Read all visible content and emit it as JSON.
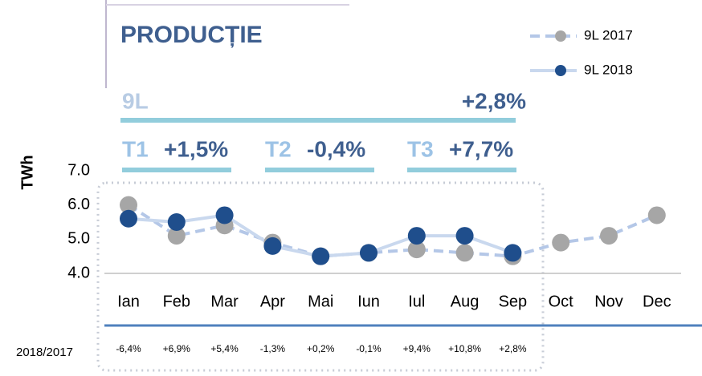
{
  "chart_data": {
    "type": "line",
    "title": "PRODUCȚIE",
    "ylabel": "TWh",
    "categories": [
      "Ian",
      "Feb",
      "Mar",
      "Apr",
      "Mai",
      "Iun",
      "Iul",
      "Aug",
      "Sep",
      "Oct",
      "Nov",
      "Dec"
    ],
    "series": [
      {
        "name": "9L 2017",
        "color": "#a6a6a6",
        "line_color": "#b4c7e7",
        "dashed": true,
        "values": [
          6.0,
          5.1,
          5.4,
          4.9,
          4.5,
          4.6,
          4.7,
          4.6,
          4.5,
          4.9,
          5.1,
          5.7
        ]
      },
      {
        "name": "9L 2018",
        "color": "#1f4e8c",
        "line_color": "#c9d8ee",
        "dashed": false,
        "values": [
          5.6,
          5.5,
          5.7,
          4.8,
          4.5,
          4.6,
          5.1,
          5.1,
          4.6,
          null,
          null,
          null
        ]
      }
    ],
    "ylim": [
      4,
      7
    ],
    "yticks": [
      {
        "value": 4,
        "label": "4.0"
      },
      {
        "value": 5,
        "label": "5.0"
      },
      {
        "value": 6,
        "label": "6.0"
      },
      {
        "value": 7,
        "label": "7.0"
      }
    ],
    "period": {
      "label": "9L",
      "value": "+2,8%"
    },
    "quarters": [
      {
        "label": "T1",
        "value": "+1,5%"
      },
      {
        "label": "T2",
        "value": "-0,4%"
      },
      {
        "label": "T3",
        "value": "+7,7%"
      }
    ],
    "ratio_label": "2018/2017",
    "ratios": [
      "-6,4%",
      "+6,9%",
      "+5,4%",
      "-1,3%",
      "+0,2%",
      "-0,1%",
      "+9,4%",
      "+10,8%",
      "+2,8%"
    ]
  }
}
